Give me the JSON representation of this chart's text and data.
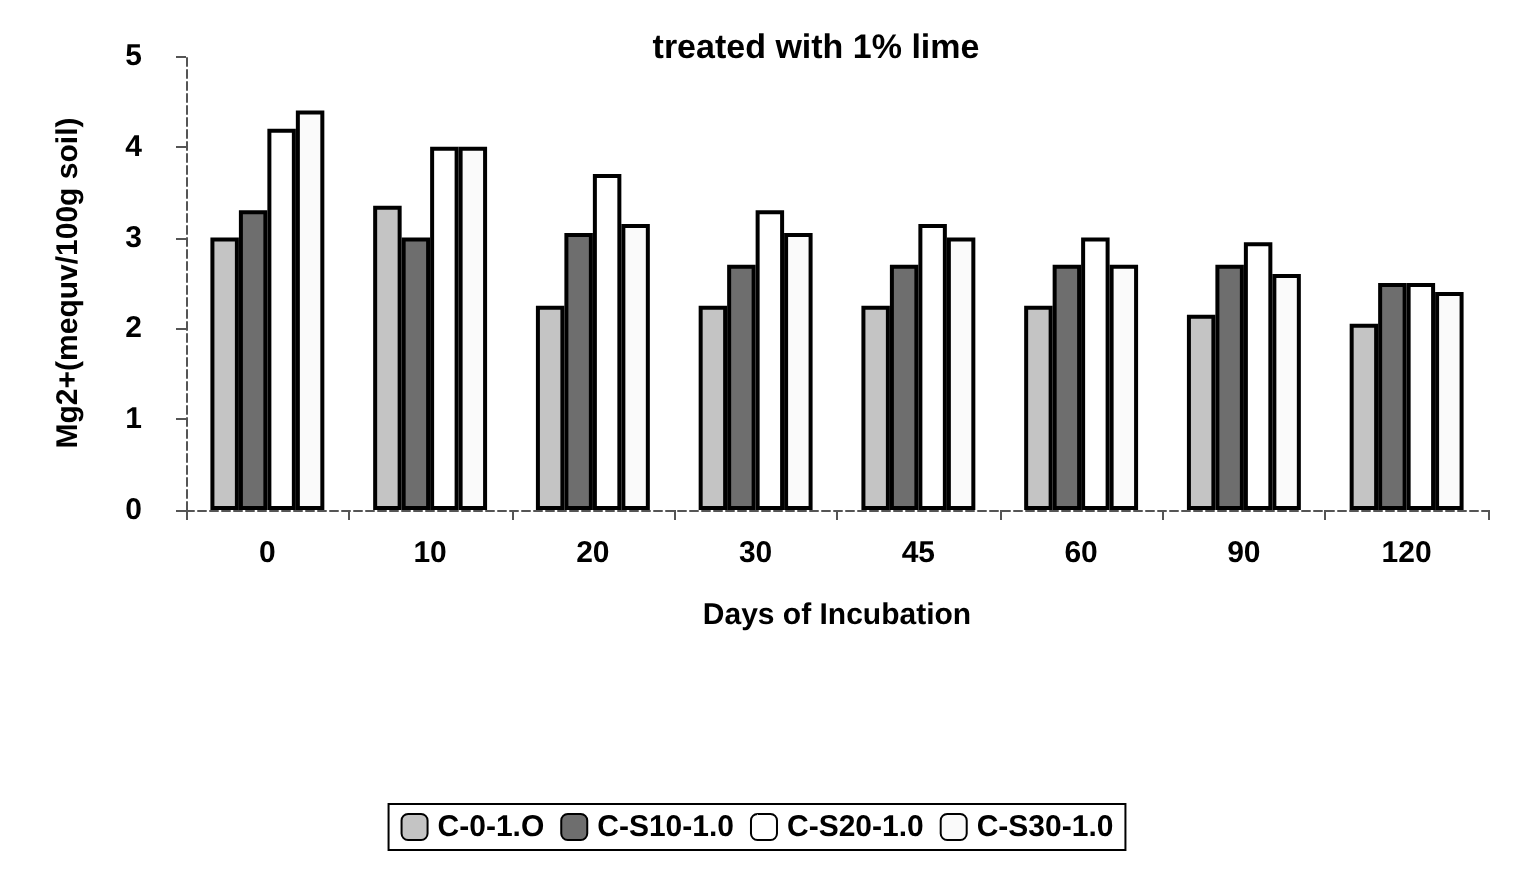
{
  "chart_data": {
    "type": "bar",
    "title": "treated with 1% lime",
    "xlabel": "Days of Incubation",
    "ylabel": "Mg2+(mequv/100g soil)",
    "categories": [
      "0",
      "10",
      "20",
      "30",
      "45",
      "60",
      "90",
      "120"
    ],
    "series": [
      {
        "name": "C-0-1.O",
        "color": "#c4c4c4",
        "values": [
          3.0,
          3.35,
          2.25,
          2.25,
          2.25,
          2.25,
          2.15,
          2.05
        ]
      },
      {
        "name": "C-S10-1.0",
        "color": "#6e6e6e",
        "values": [
          3.3,
          3.0,
          3.05,
          2.7,
          2.7,
          2.7,
          2.7,
          2.5
        ]
      },
      {
        "name": "C-S20-1.0",
        "color": "#ffffff",
        "values": [
          4.2,
          4.0,
          3.7,
          3.3,
          3.15,
          3.0,
          2.95,
          2.5
        ]
      },
      {
        "name": "C-S30-1.0",
        "color": "#fafafa",
        "values": [
          4.4,
          4.0,
          3.15,
          3.05,
          3.0,
          2.7,
          2.6,
          2.4
        ]
      }
    ],
    "ylim": [
      0,
      5
    ],
    "yticks": [
      0,
      1,
      2,
      3,
      4,
      5
    ],
    "grid": false,
    "legend": "bottom"
  }
}
